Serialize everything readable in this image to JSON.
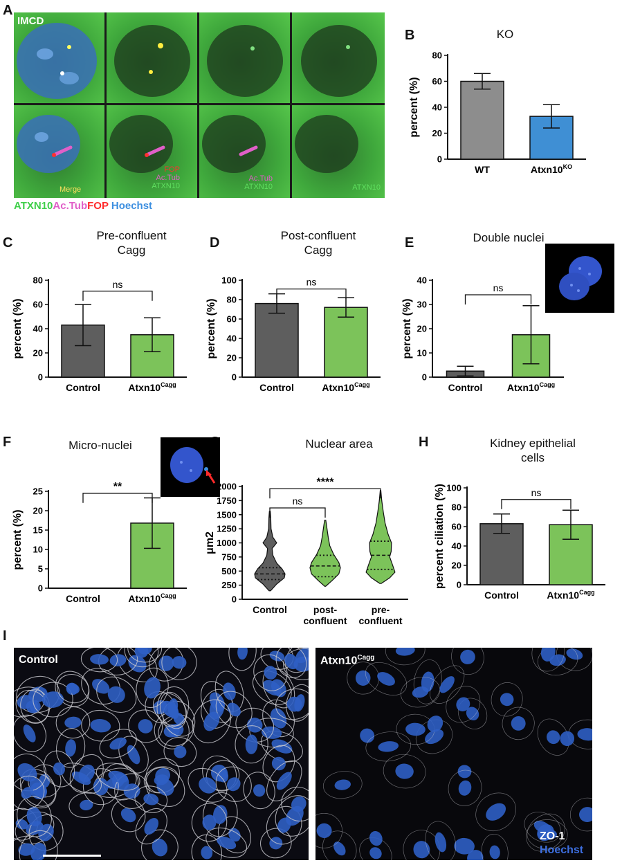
{
  "panel_labels": [
    "A",
    "B",
    "C",
    "D",
    "E",
    "F",
    "G",
    "H",
    "I"
  ],
  "panel_a": {
    "cell_line": "IMCD",
    "merge": "Merge",
    "fop": "FOP",
    "actub": "Ac.Tub",
    "atxn10": "ATXN10",
    "legend": {
      "atxn10": "ATXN10",
      "actub": "Ac.Tub",
      "fop": "FOP",
      "hoechst": "Hoechst"
    },
    "colors": {
      "green": "#3fcf4a",
      "magenta": "#e05fc8",
      "red": "#ff2a2a",
      "blue": "#3d8fe0"
    }
  },
  "panel_i": {
    "control": "Control",
    "cagg_base": "Atxn10",
    "cagg_sup": "Cagg",
    "zo1": "ZO-1",
    "hoechst": "Hoechst"
  },
  "chart_data": [
    {
      "id": "B",
      "type": "bar",
      "title": "KO",
      "subtitle": "",
      "ylabel": "percent  (%)",
      "ylim": [
        0,
        80
      ],
      "yticks": [
        0,
        20,
        40,
        60,
        80
      ],
      "categories": [
        {
          "base": "WT",
          "sup": ""
        },
        {
          "base": "Atxn10",
          "sup": "KO"
        }
      ],
      "values": [
        60,
        33
      ],
      "errors": [
        6,
        9
      ],
      "colors": [
        "#8d8d8d",
        "#3f8fd4"
      ],
      "comparisons": []
    },
    {
      "id": "C",
      "type": "bar",
      "title": "Pre-confluent",
      "subtitle": "Cagg",
      "ylabel": "percent  (%)",
      "ylim": [
        0,
        80
      ],
      "yticks": [
        0,
        20,
        40,
        60,
        80
      ],
      "categories": [
        {
          "base": "Control",
          "sup": ""
        },
        {
          "base": "Atxn10",
          "sup": "Cagg"
        }
      ],
      "values": [
        43,
        35
      ],
      "errors": [
        17,
        14
      ],
      "colors": [
        "#5e5e5e",
        "#7cc35a"
      ],
      "comparisons": [
        {
          "from": 0,
          "to": 1,
          "label": "ns",
          "at": 71
        }
      ]
    },
    {
      "id": "D",
      "type": "bar",
      "title": "Post-confluent",
      "subtitle": "Cagg",
      "ylabel": "percent  (%)",
      "ylim": [
        0,
        100
      ],
      "yticks": [
        0,
        20,
        40,
        60,
        80,
        100
      ],
      "categories": [
        {
          "base": "Control",
          "sup": ""
        },
        {
          "base": "Atxn10",
          "sup": "Cagg"
        }
      ],
      "values": [
        76,
        72
      ],
      "errors": [
        10,
        10
      ],
      "colors": [
        "#5e5e5e",
        "#7cc35a"
      ],
      "comparisons": [
        {
          "from": 0,
          "to": 1,
          "label": "ns",
          "at": 91
        }
      ]
    },
    {
      "id": "E",
      "type": "bar",
      "title": "Double nuclei",
      "subtitle": "",
      "ylabel": "percent  (%)",
      "ylim": [
        0,
        40
      ],
      "yticks": [
        0,
        10,
        20,
        30,
        40
      ],
      "categories": [
        {
          "base": "Control",
          "sup": ""
        },
        {
          "base": "Atxn10",
          "sup": "Cagg"
        }
      ],
      "values": [
        2.5,
        17.5
      ],
      "errors": [
        2,
        12
      ],
      "colors": [
        "#5e5e5e",
        "#7cc35a"
      ],
      "comparisons": [
        {
          "from": 0,
          "to": 1,
          "label": "ns",
          "at": 34
        }
      ]
    },
    {
      "id": "F",
      "type": "bar",
      "title": "Micro-nuclei",
      "subtitle": "",
      "ylabel": "percent  (%)",
      "ylim": [
        0,
        25
      ],
      "yticks": [
        0,
        5,
        10,
        15,
        20,
        25
      ],
      "categories": [
        {
          "base": "Control",
          "sup": ""
        },
        {
          "base": "Atxn10",
          "sup": "Cagg"
        }
      ],
      "values": [
        0,
        16.8
      ],
      "errors": [
        0,
        6.5
      ],
      "colors": [
        "#5e5e5e",
        "#7cc35a"
      ],
      "comparisons": [
        {
          "from": 0,
          "to": 1,
          "label": "**",
          "at": 24.5
        }
      ]
    },
    {
      "id": "G",
      "type": "violin",
      "title": "Nuclear area",
      "subtitle": "",
      "ylabel": "μm2",
      "ylim": [
        0,
        2000
      ],
      "yticks": [
        0,
        250,
        500,
        750,
        1000,
        1250,
        1500,
        1750,
        2000
      ],
      "categories": [
        {
          "base": "Control",
          "base2": ""
        },
        {
          "base": "post-",
          "base2": "confluent"
        },
        {
          "base": "pre-",
          "base2": "confluent"
        }
      ],
      "colors": [
        "#5e5e5e",
        "#7cc35a",
        "#7cc35a"
      ],
      "violins": [
        {
          "median": 450,
          "q1": 350,
          "q3": 560,
          "profile": [
            [
              150,
              0.05
            ],
            [
              270,
              0.45
            ],
            [
              380,
              0.95
            ],
            [
              450,
              1.0
            ],
            [
              540,
              0.8
            ],
            [
              640,
              0.45
            ],
            [
              780,
              0.2
            ],
            [
              900,
              0.15
            ],
            [
              1000,
              0.45
            ],
            [
              1100,
              0.2
            ],
            [
              1250,
              0.08
            ],
            [
              1450,
              0.06
            ],
            [
              1560,
              0.03
            ]
          ]
        },
        {
          "median": 590,
          "q1": 400,
          "q3": 780,
          "profile": [
            [
              230,
              0.03
            ],
            [
              330,
              0.45
            ],
            [
              450,
              0.9
            ],
            [
              560,
              1.0
            ],
            [
              650,
              0.9
            ],
            [
              800,
              0.55
            ],
            [
              950,
              0.3
            ],
            [
              1100,
              0.2
            ],
            [
              1250,
              0.12
            ],
            [
              1400,
              0.04
            ]
          ]
        },
        {
          "median": 780,
          "q1": 530,
          "q3": 1030,
          "profile": [
            [
              280,
              0.05
            ],
            [
              380,
              0.6
            ],
            [
              480,
              0.95
            ],
            [
              600,
              0.8
            ],
            [
              750,
              0.6
            ],
            [
              850,
              0.7
            ],
            [
              1000,
              0.72
            ],
            [
              1150,
              0.5
            ],
            [
              1350,
              0.3
            ],
            [
              1550,
              0.18
            ],
            [
              1750,
              0.08
            ],
            [
              1930,
              0.02
            ]
          ]
        }
      ],
      "comparisons": [
        {
          "from": 0,
          "to": 1,
          "label": "ns",
          "at": 1620
        },
        {
          "from": 0,
          "to": 2,
          "label": "****",
          "at": 1960
        }
      ]
    },
    {
      "id": "H",
      "type": "bar",
      "title": "Kidney epithelial",
      "subtitle": "cells",
      "ylabel": "percent ciliation (%)",
      "ylim": [
        0,
        100
      ],
      "yticks": [
        0,
        20,
        40,
        60,
        80,
        100
      ],
      "categories": [
        {
          "base": "Control",
          "sup": ""
        },
        {
          "base": "Atxn10",
          "sup": "Cagg"
        }
      ],
      "values": [
        63,
        62
      ],
      "errors": [
        10,
        15
      ],
      "colors": [
        "#5e5e5e",
        "#7cc35a"
      ],
      "comparisons": [
        {
          "from": 0,
          "to": 1,
          "label": "ns",
          "at": 88
        }
      ]
    }
  ]
}
